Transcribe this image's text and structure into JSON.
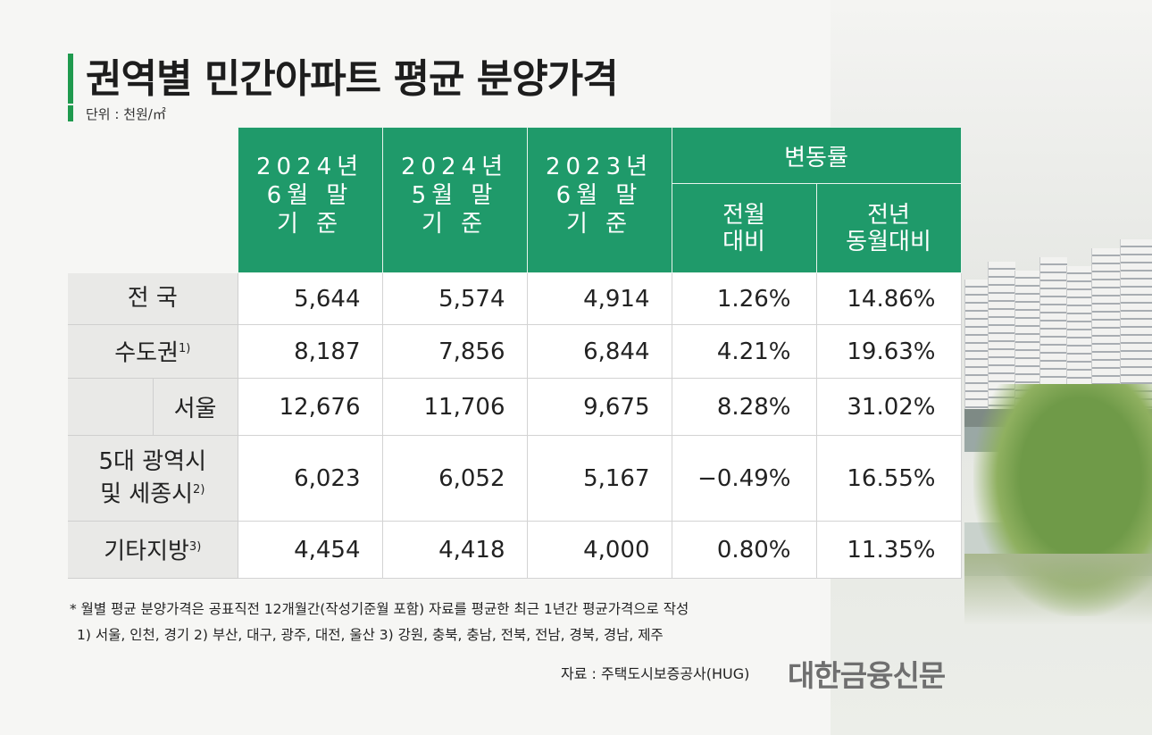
{
  "title": "권역별 민간아파트 평균 분양가격",
  "unit": "단위 : 천원/㎡",
  "headers": {
    "col1": "2024년\n6월 말\n기   준",
    "col2": "2024년\n5월 말\n기   준",
    "col3": "2023년\n6월 말\n기   준",
    "group": "변동률",
    "sub1": "전월\n대비",
    "sub2": "전년\n동월대비"
  },
  "rows": [
    {
      "label": "전   국",
      "sup": "",
      "v": [
        "5,644",
        "5,574",
        "4,914",
        "1.26%",
        "14.86%"
      ]
    },
    {
      "label": "수도권",
      "sup": "1)",
      "v": [
        "8,187",
        "7,856",
        "6,844",
        "4.21%",
        "19.63%"
      ]
    },
    {
      "label": "서울",
      "sup": "",
      "v": [
        "12,676",
        "11,706",
        "9,675",
        "8.28%",
        "31.02%"
      ]
    },
    {
      "label": "5대 광역시\n및 세종시",
      "sup": "2)",
      "v": [
        "6,023",
        "6,052",
        "5,167",
        "−0.49%",
        "16.55%"
      ]
    },
    {
      "label": "기타지방",
      "sup": "3)",
      "v": [
        "4,454",
        "4,418",
        "4,000",
        "0.80%",
        "11.35%"
      ]
    }
  ],
  "notes": {
    "n1": "* 월별 평균 분양가격은 공표직전 12개월간(작성기준월 포함) 자료를 평균한 최근 1년간 평균가격으로 작성",
    "n2": "1) 서울, 인천, 경기    2) 부산, 대구, 광주, 대전, 울산    3) 강원, 충북, 충남, 전북, 전남, 경북, 경남, 제주"
  },
  "source": "자료 : 주택도시보증공사(HUG)",
  "logo": "대한금융신문",
  "colors": {
    "header": "#1f9a6a",
    "accent": "#1f9a4e",
    "label_bg": "#e9e9e7"
  },
  "chart_data": {
    "type": "table",
    "title": "권역별 민간아파트 평균 분양가격",
    "unit": "천원/㎡",
    "columns": [
      "2024년 6월 말 기준",
      "2024년 5월 말 기준",
      "2023년 6월 말 기준",
      "변동률 전월대비",
      "변동률 전년동월대비"
    ],
    "rows": [
      {
        "region": "전국",
        "values": [
          5644,
          5574,
          4914,
          1.26,
          14.86
        ]
      },
      {
        "region": "수도권",
        "values": [
          8187,
          7856,
          6844,
          4.21,
          19.63
        ]
      },
      {
        "region": "서울",
        "values": [
          12676,
          11706,
          9675,
          8.28,
          31.02
        ]
      },
      {
        "region": "5대 광역시 및 세종시",
        "values": [
          6023,
          6052,
          5167,
          -0.49,
          16.55
        ]
      },
      {
        "region": "기타지방",
        "values": [
          4454,
          4418,
          4000,
          0.8,
          11.35
        ]
      }
    ]
  }
}
